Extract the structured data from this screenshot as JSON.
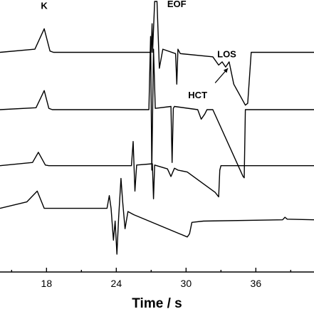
{
  "chart_data": {
    "type": "line",
    "title": "",
    "xlabel": "Time / s",
    "ylabel": "",
    "xlim": [
      14,
      41
    ],
    "ylim": [
      0,
      4.25
    ],
    "grid": false,
    "legend": "none",
    "x_ticks": [
      18,
      24,
      30,
      36
    ],
    "annotations": [
      {
        "text": "K",
        "x": 17.8,
        "y": 4.13
      },
      {
        "text": "EOF",
        "x": 29.2,
        "y": 4.16
      },
      {
        "text": "LOS",
        "x": 33.5,
        "y": 3.37
      },
      {
        "text": "HCT",
        "x": 31.0,
        "y": 2.73
      }
    ],
    "arrow": {
      "from": [
        32.5,
        2.97
      ],
      "to": [
        33.6,
        3.2
      ]
    },
    "series": [
      {
        "x": [
          14,
          17.0,
          17.8,
          18.3,
          18.6,
          27.0,
          27.08,
          27.12,
          27.3,
          27.5,
          27.7,
          28.0,
          29.1,
          29.2,
          29.3,
          29.5,
          32.3,
          32.8,
          33.1,
          33.4,
          33.7,
          34.1,
          35.1,
          35.3,
          35.6,
          41
        ],
        "y": [
          3.45,
          3.5,
          3.82,
          3.47,
          3.45,
          3.45,
          3.9,
          3.45,
          4.25,
          4.25,
          3.2,
          3.5,
          3.43,
          2.95,
          3.5,
          3.43,
          3.38,
          3.25,
          3.3,
          3.22,
          3.3,
          2.95,
          2.62,
          2.65,
          3.45,
          3.45
        ]
      },
      {
        "x": [
          14,
          17.1,
          17.8,
          18.2,
          18.5,
          26.8,
          26.95,
          27.05,
          27.2,
          27.35,
          28.7,
          28.8,
          28.9,
          29.0,
          31.0,
          31.3,
          31.6,
          31.8,
          32.3,
          34.9,
          35.0,
          35.1,
          41
        ],
        "y": [
          2.55,
          2.58,
          2.85,
          2.57,
          2.55,
          2.55,
          3.7,
          1.6,
          3.5,
          2.57,
          2.6,
          1.72,
          2.57,
          2.6,
          2.55,
          2.4,
          2.48,
          2.55,
          2.55,
          1.5,
          1.48,
          2.55,
          2.55
        ]
      },
      {
        "x": [
          14,
          16.8,
          17.3,
          17.9,
          18.2,
          25.3,
          25.45,
          25.6,
          25.75,
          27.1,
          27.2,
          27.3,
          28.4,
          28.7,
          29.0,
          29.3,
          30.1,
          32.5,
          32.8,
          32.9,
          33.0,
          41
        ],
        "y": [
          1.67,
          1.72,
          1.88,
          1.68,
          1.67,
          1.67,
          2.05,
          1.27,
          1.68,
          1.7,
          1.15,
          1.68,
          1.62,
          1.5,
          1.63,
          1.6,
          1.57,
          1.25,
          1.18,
          1.6,
          1.67,
          1.67
        ]
      },
      {
        "x": [
          14,
          16.3,
          17.2,
          17.8,
          18.2,
          23.2,
          23.4,
          23.55,
          23.75,
          23.9,
          24.05,
          24.2,
          24.4,
          24.55,
          24.75,
          25.0,
          25.5,
          30.1,
          30.3,
          30.5,
          31.5,
          38.3,
          38.5,
          38.7,
          41
        ],
        "y": [
          1.0,
          1.1,
          1.27,
          1.0,
          1.0,
          1.0,
          1.2,
          1.0,
          0.5,
          0.8,
          0.28,
          0.85,
          1.47,
          1.1,
          0.68,
          0.95,
          0.9,
          0.55,
          0.6,
          0.78,
          0.8,
          0.82,
          0.86,
          0.83,
          0.82
        ]
      }
    ]
  }
}
